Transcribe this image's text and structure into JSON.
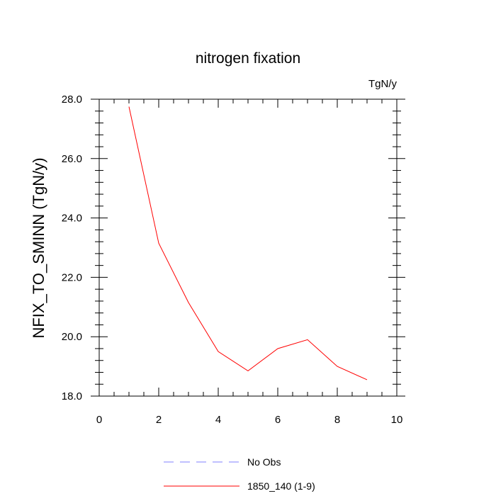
{
  "chart_data": {
    "type": "line",
    "title": "nitrogen fixation",
    "units_label": "TgN/y",
    "xlabel": "",
    "ylabel": "NFIX_TO_SMINN  (TgN/y)",
    "xlim": [
      0,
      10
    ],
    "ylim": [
      18.0,
      28.0
    ],
    "x_ticks": [
      0,
      2,
      4,
      6,
      8,
      10
    ],
    "x_tick_labels": [
      "0",
      "2",
      "4",
      "6",
      "8",
      "10"
    ],
    "y_ticks": [
      18.0,
      20.0,
      22.0,
      24.0,
      26.0,
      28.0
    ],
    "y_tick_labels": [
      "18.0",
      "20.0",
      "22.0",
      "24.0",
      "26.0",
      "28.0"
    ],
    "grid": false,
    "legend_position": "bottom",
    "series": [
      {
        "name": "No Obs",
        "color": "#8080ff",
        "dash": "dashed",
        "x": [],
        "y": []
      },
      {
        "name": "1850_140 (1-9)",
        "color": "#ff0000",
        "dash": "solid",
        "x": [
          1,
          2,
          3,
          4,
          5,
          6,
          7,
          8,
          9
        ],
        "y": [
          27.75,
          23.15,
          21.15,
          19.5,
          18.85,
          19.6,
          19.9,
          19.0,
          18.55
        ]
      }
    ]
  }
}
